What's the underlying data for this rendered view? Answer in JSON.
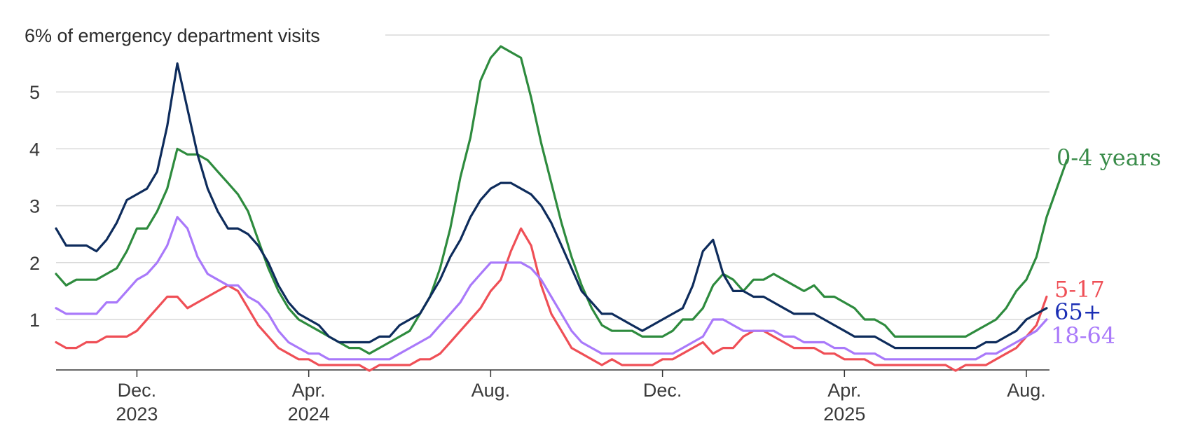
{
  "chart_data": {
    "type": "line",
    "title": "",
    "ylabel": "% of emergency department visits",
    "ylim": [
      0.1,
      6
    ],
    "y_ticks": [
      1,
      2,
      3,
      4,
      5,
      6
    ],
    "y_tick_labels": [
      "1",
      "2",
      "3",
      "4",
      "5",
      "6"
    ],
    "x_range": [
      0,
      96
    ],
    "x_ticks": [
      {
        "x": 8,
        "month": "Dec.",
        "year": "2023"
      },
      {
        "x": 25,
        "month": "Apr.",
        "year": "2024"
      },
      {
        "x": 43,
        "month": "Aug.",
        "year": ""
      },
      {
        "x": 60,
        "month": "Dec.",
        "year": ""
      },
      {
        "x": 78,
        "month": "Apr.",
        "year": "2025"
      },
      {
        "x": 96,
        "month": "Aug.",
        "year": ""
      }
    ],
    "series": [
      {
        "name": "0-4 years",
        "color": "#2e8b3e",
        "values": [
          1.8,
          1.6,
          1.7,
          1.7,
          1.7,
          1.8,
          1.9,
          2.2,
          2.6,
          2.6,
          2.9,
          3.3,
          4.0,
          3.9,
          3.9,
          3.8,
          3.6,
          3.4,
          3.2,
          2.9,
          2.4,
          1.9,
          1.5,
          1.2,
          1.0,
          0.9,
          0.8,
          0.7,
          0.6,
          0.5,
          0.5,
          0.4,
          0.5,
          0.6,
          0.7,
          0.8,
          1.1,
          1.4,
          1.9,
          2.6,
          3.5,
          4.2,
          5.2,
          5.6,
          5.8,
          5.7,
          5.6,
          4.9,
          4.1,
          3.4,
          2.7,
          2.1,
          1.6,
          1.2,
          0.9,
          0.8,
          0.8,
          0.8,
          0.7,
          0.7,
          0.7,
          0.8,
          1.0,
          1.0,
          1.2,
          1.6,
          1.8,
          1.7,
          1.5,
          1.7,
          1.7,
          1.8,
          1.7,
          1.6,
          1.5,
          1.6,
          1.4,
          1.4,
          1.3,
          1.2,
          1.0,
          1.0,
          0.9,
          0.7,
          0.7,
          0.7,
          0.7,
          0.7,
          0.7,
          0.7,
          0.7,
          0.8,
          0.9,
          1.0,
          1.2,
          1.5,
          1.7,
          2.1,
          2.8,
          3.3,
          3.8
        ]
      },
      {
        "name": "5-17",
        "color": "#ef4f56",
        "values": [
          0.6,
          0.5,
          0.5,
          0.6,
          0.6,
          0.7,
          0.7,
          0.7,
          0.8,
          1.0,
          1.2,
          1.4,
          1.4,
          1.2,
          1.3,
          1.4,
          1.5,
          1.6,
          1.5,
          1.2,
          0.9,
          0.7,
          0.5,
          0.4,
          0.3,
          0.3,
          0.2,
          0.2,
          0.2,
          0.2,
          0.2,
          0.1,
          0.2,
          0.2,
          0.2,
          0.2,
          0.3,
          0.3,
          0.4,
          0.6,
          0.8,
          1.0,
          1.2,
          1.5,
          1.7,
          2.2,
          2.6,
          2.3,
          1.6,
          1.1,
          0.8,
          0.5,
          0.4,
          0.3,
          0.2,
          0.3,
          0.2,
          0.2,
          0.2,
          0.2,
          0.3,
          0.3,
          0.4,
          0.5,
          0.6,
          0.4,
          0.5,
          0.5,
          0.7,
          0.8,
          0.8,
          0.7,
          0.6,
          0.5,
          0.5,
          0.5,
          0.4,
          0.4,
          0.3,
          0.3,
          0.3,
          0.2,
          0.2,
          0.2,
          0.2,
          0.2,
          0.2,
          0.2,
          0.2,
          0.1,
          0.2,
          0.2,
          0.2,
          0.3,
          0.4,
          0.5,
          0.7,
          0.9,
          1.4
        ]
      },
      {
        "name": "65+",
        "color": "#0e2c5c",
        "values": [
          2.6,
          2.3,
          2.3,
          2.3,
          2.2,
          2.4,
          2.7,
          3.1,
          3.2,
          3.3,
          3.6,
          4.4,
          5.5,
          4.7,
          3.9,
          3.3,
          2.9,
          2.6,
          2.6,
          2.5,
          2.3,
          2.0,
          1.6,
          1.3,
          1.1,
          1.0,
          0.9,
          0.7,
          0.6,
          0.6,
          0.6,
          0.6,
          0.7,
          0.7,
          0.9,
          1.0,
          1.1,
          1.4,
          1.7,
          2.1,
          2.4,
          2.8,
          3.1,
          3.3,
          3.4,
          3.4,
          3.3,
          3.2,
          3.0,
          2.7,
          2.3,
          1.9,
          1.5,
          1.3,
          1.1,
          1.1,
          1.0,
          0.9,
          0.8,
          0.9,
          1.0,
          1.1,
          1.2,
          1.6,
          2.2,
          2.4,
          1.8,
          1.5,
          1.5,
          1.4,
          1.4,
          1.3,
          1.2,
          1.1,
          1.1,
          1.1,
          1.0,
          0.9,
          0.8,
          0.7,
          0.7,
          0.7,
          0.6,
          0.5,
          0.5,
          0.5,
          0.5,
          0.5,
          0.5,
          0.5,
          0.5,
          0.5,
          0.6,
          0.6,
          0.7,
          0.8,
          1.0,
          1.1,
          1.2
        ]
      },
      {
        "name": "18-64",
        "color": "#a979fa",
        "values": [
          1.2,
          1.1,
          1.1,
          1.1,
          1.1,
          1.3,
          1.3,
          1.5,
          1.7,
          1.8,
          2.0,
          2.3,
          2.8,
          2.6,
          2.1,
          1.8,
          1.7,
          1.6,
          1.6,
          1.4,
          1.3,
          1.1,
          0.8,
          0.6,
          0.5,
          0.4,
          0.4,
          0.3,
          0.3,
          0.3,
          0.3,
          0.3,
          0.3,
          0.3,
          0.4,
          0.5,
          0.6,
          0.7,
          0.9,
          1.1,
          1.3,
          1.6,
          1.8,
          2.0,
          2.0,
          2.0,
          2.0,
          1.9,
          1.7,
          1.4,
          1.1,
          0.8,
          0.6,
          0.5,
          0.4,
          0.4,
          0.4,
          0.4,
          0.4,
          0.4,
          0.4,
          0.4,
          0.5,
          0.6,
          0.7,
          1.0,
          1.0,
          0.9,
          0.8,
          0.8,
          0.8,
          0.8,
          0.7,
          0.7,
          0.6,
          0.6,
          0.6,
          0.5,
          0.5,
          0.4,
          0.4,
          0.4,
          0.3,
          0.3,
          0.3,
          0.3,
          0.3,
          0.3,
          0.3,
          0.3,
          0.3,
          0.3,
          0.4,
          0.4,
          0.5,
          0.6,
          0.7,
          0.8,
          1.0
        ]
      }
    ],
    "series_labels": [
      {
        "text": "0-4 years",
        "series": "0-4 years"
      },
      {
        "text": "5-17",
        "series": "5-17"
      },
      {
        "text": "65+",
        "series": "65+"
      },
      {
        "text": "18-64",
        "series": "18-64"
      }
    ],
    "label_colors": {
      "0-4 years": "#3a8c4a",
      "5-17": "#ef4f56",
      "65+": "#1b2fb5",
      "18-64": "#a979fa"
    }
  }
}
